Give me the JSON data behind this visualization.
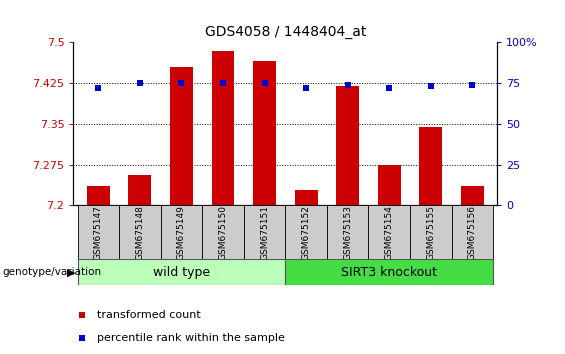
{
  "title": "GDS4058 / 1448404_at",
  "samples": [
    "GSM675147",
    "GSM675148",
    "GSM675149",
    "GSM675150",
    "GSM675151",
    "GSM675152",
    "GSM675153",
    "GSM675154",
    "GSM675155",
    "GSM675156"
  ],
  "bar_values": [
    7.235,
    7.255,
    7.455,
    7.485,
    7.465,
    7.228,
    7.42,
    7.275,
    7.345,
    7.235
  ],
  "dot_values": [
    72,
    75,
    75,
    75,
    75,
    72,
    74,
    72,
    73,
    74
  ],
  "ylim_left": [
    7.2,
    7.5
  ],
  "ylim_right": [
    0,
    100
  ],
  "yticks_left": [
    7.2,
    7.275,
    7.35,
    7.425,
    7.5
  ],
  "yticks_right": [
    0,
    25,
    50,
    75,
    100
  ],
  "bar_color": "#cc0000",
  "dot_color": "#0000cc",
  "wild_type_color": "#bbffbb",
  "knockout_color": "#44dd44",
  "label_box_color": "#cccccc",
  "wild_type_label": "wild type",
  "knockout_label": "SIRT3 knockout",
  "genotype_label": "genotype/variation",
  "legend_bar_label": "transformed count",
  "legend_dot_label": "percentile rank within the sample"
}
